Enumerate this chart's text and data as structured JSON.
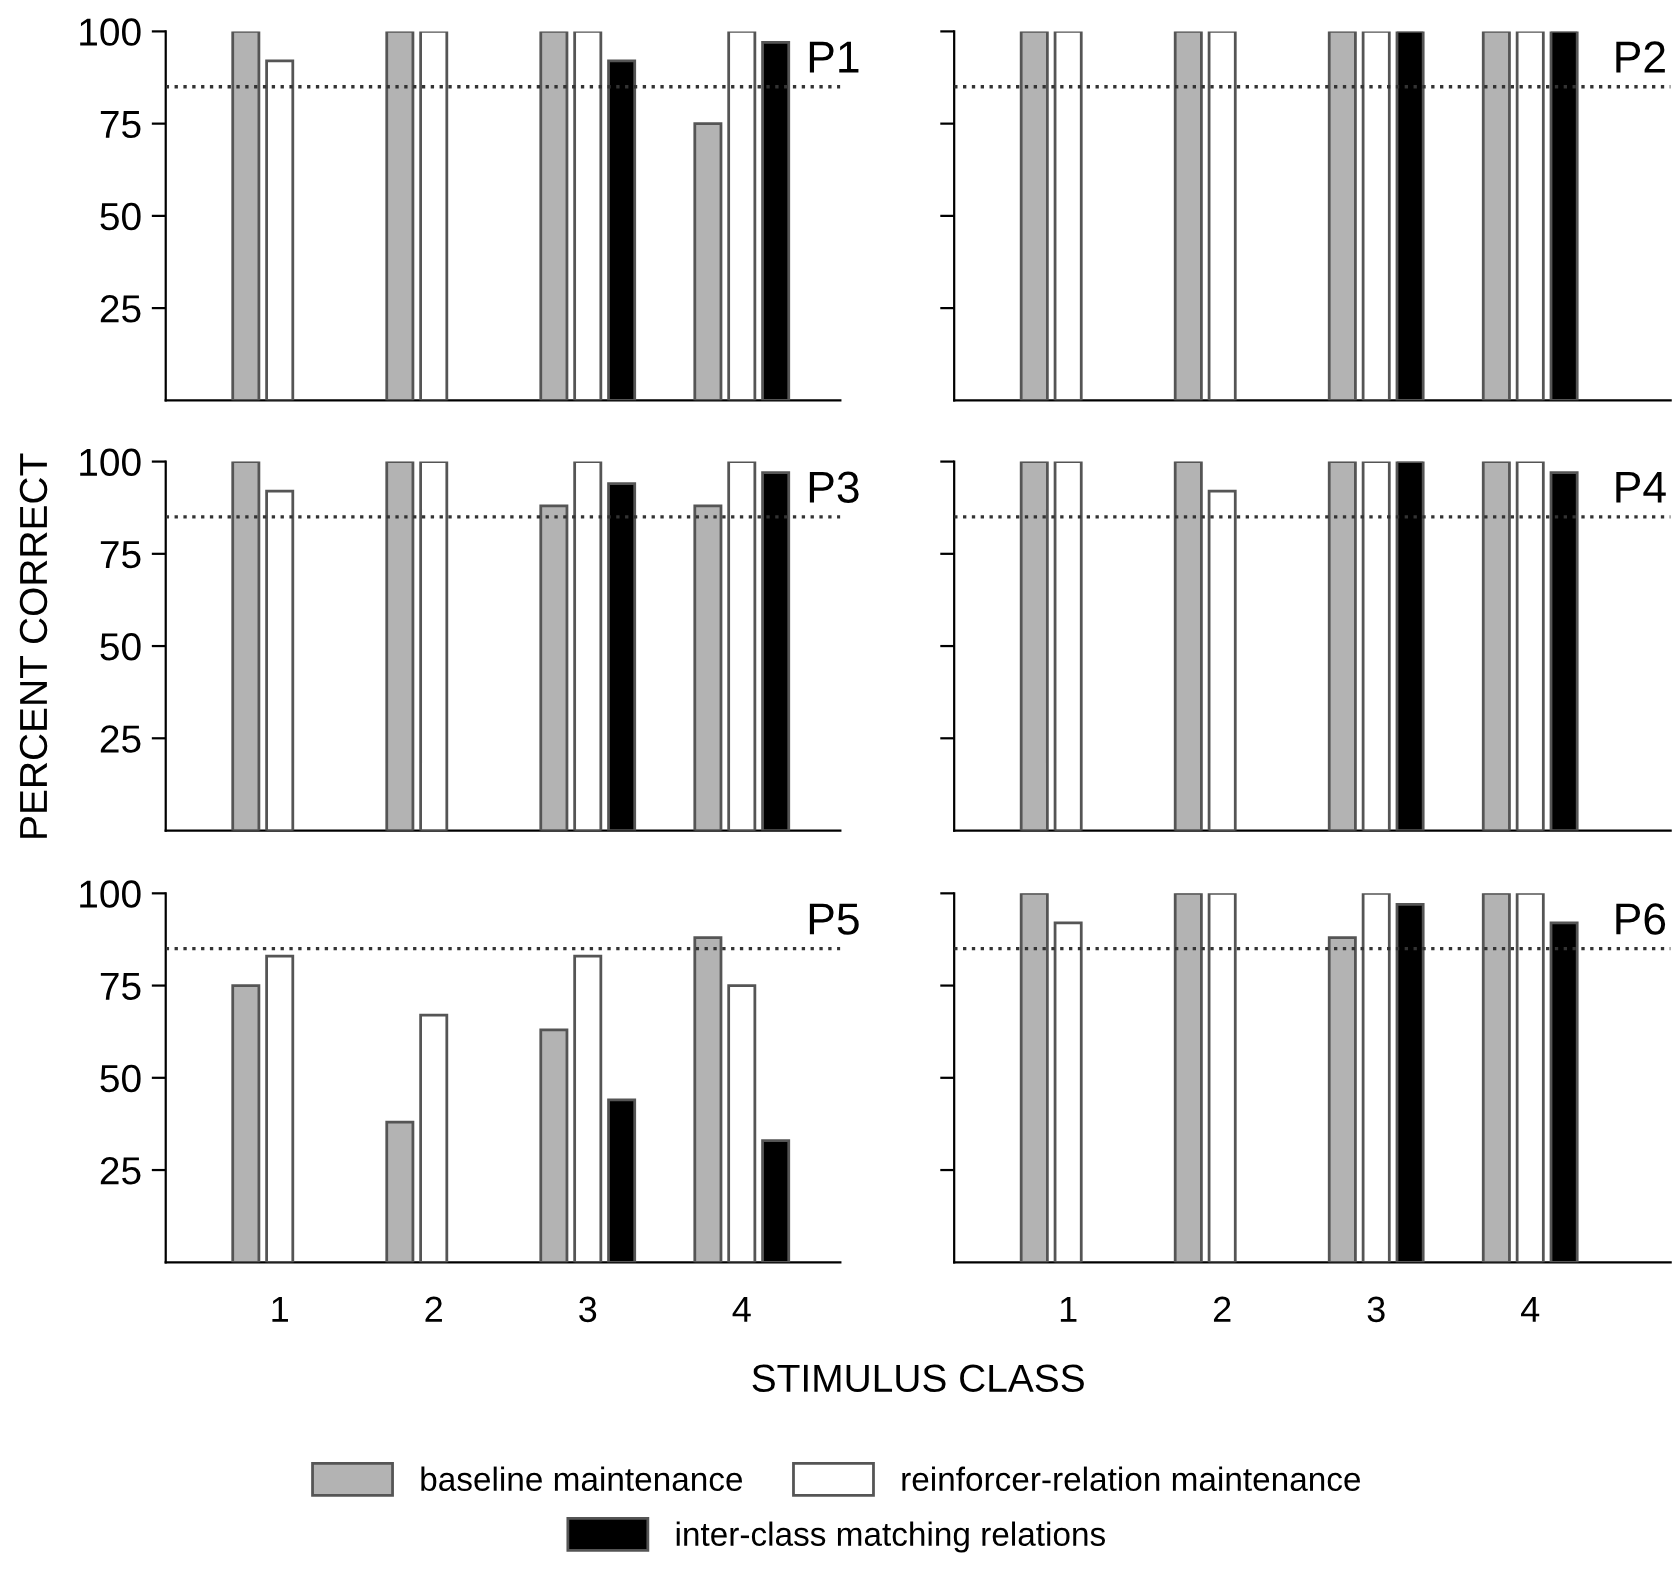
{
  "chart_data": [
    {
      "type": "bar",
      "title": "P1",
      "categories": [
        "1",
        "2",
        "3",
        "4"
      ],
      "ylim": [
        0,
        100
      ],
      "yticks": [
        25,
        50,
        75,
        100
      ],
      "tick_labels": "y",
      "grid": false,
      "legend": "bottom",
      "ref_lines": [
        {
          "axis": "y",
          "value": 85,
          "line_style": "dotted",
          "color": "#333333"
        }
      ],
      "series": [
        {
          "name": "baseline maintenance",
          "color": "#b3b3b3",
          "values": [
            100,
            100,
            100,
            75
          ]
        },
        {
          "name": "reinforcer-relation maintenance",
          "color": "#ffffff",
          "values": [
            92,
            100,
            100,
            100
          ]
        },
        {
          "name": "inter-class matching relations",
          "color": "#000000",
          "values": [
            null,
            null,
            92,
            97
          ]
        }
      ]
    },
    {
      "type": "bar",
      "title": "P2",
      "categories": [
        "1",
        "2",
        "3",
        "4"
      ],
      "ylim": [
        0,
        100
      ],
      "yticks": [
        25,
        50,
        75,
        100
      ],
      "tick_labels": false,
      "grid": false,
      "ref_lines": [
        {
          "axis": "y",
          "value": 85,
          "line_style": "dotted",
          "color": "#333333"
        }
      ],
      "series": [
        {
          "color": "#b3b3b3",
          "values": [
            100,
            100,
            100,
            100
          ]
        },
        {
          "color": "#ffffff",
          "values": [
            100,
            100,
            100,
            100
          ]
        },
        {
          "color": "#000000",
          "values": [
            null,
            null,
            100,
            100
          ]
        }
      ]
    },
    {
      "type": "bar",
      "title": "P3",
      "ylabel": "PERCENT CORRECT",
      "categories": [
        "1",
        "2",
        "3",
        "4"
      ],
      "ylim": [
        0,
        100
      ],
      "yticks": [
        25,
        50,
        75,
        100
      ],
      "tick_labels": "y",
      "grid": false,
      "ref_lines": [
        {
          "axis": "y",
          "value": 85,
          "line_style": "dotted",
          "color": "#333333"
        }
      ],
      "series": [
        {
          "color": "#b3b3b3",
          "values": [
            100,
            100,
            88,
            88
          ]
        },
        {
          "color": "#ffffff",
          "values": [
            92,
            100,
            100,
            100
          ]
        },
        {
          "color": "#000000",
          "values": [
            null,
            null,
            94,
            97
          ]
        }
      ]
    },
    {
      "type": "bar",
      "title": "P4",
      "categories": [
        "1",
        "2",
        "3",
        "4"
      ],
      "ylim": [
        0,
        100
      ],
      "yticks": [
        25,
        50,
        75,
        100
      ],
      "tick_labels": false,
      "grid": false,
      "ref_lines": [
        {
          "axis": "y",
          "value": 85,
          "line_style": "dotted",
          "color": "#333333"
        }
      ],
      "series": [
        {
          "color": "#b3b3b3",
          "values": [
            100,
            100,
            100,
            100
          ]
        },
        {
          "color": "#ffffff",
          "values": [
            100,
            92,
            100,
            100
          ]
        },
        {
          "color": "#000000",
          "values": [
            null,
            null,
            100,
            97
          ]
        }
      ]
    },
    {
      "type": "bar",
      "title": "P5",
      "xlabel": "STIMULUS CLASS",
      "categories": [
        "1",
        "2",
        "3",
        "4"
      ],
      "ylim": [
        0,
        100
      ],
      "yticks": [
        25,
        50,
        75,
        100
      ],
      "grid": false,
      "ref_lines": [
        {
          "axis": "y",
          "value": 85,
          "line_style": "dotted",
          "color": "#333333"
        }
      ],
      "series": [
        {
          "color": "#b3b3b3",
          "values": [
            75,
            38,
            63,
            88
          ]
        },
        {
          "color": "#ffffff",
          "values": [
            83,
            67,
            83,
            75
          ]
        },
        {
          "color": "#000000",
          "values": [
            null,
            null,
            44,
            33
          ]
        }
      ]
    },
    {
      "type": "bar",
      "title": "P6",
      "categories": [
        "1",
        "2",
        "3",
        "4"
      ],
      "ylim": [
        0,
        100
      ],
      "yticks": [
        25,
        50,
        75,
        100
      ],
      "tick_labels": "x",
      "grid": false,
      "ref_lines": [
        {
          "axis": "y",
          "value": 85,
          "line_style": "dotted",
          "color": "#333333"
        }
      ],
      "series": [
        {
          "color": "#b3b3b3",
          "values": [
            100,
            100,
            88,
            100
          ]
        },
        {
          "color": "#ffffff",
          "values": [
            92,
            100,
            100,
            100
          ]
        },
        {
          "color": "#000000",
          "values": [
            null,
            null,
            97,
            92
          ]
        }
      ]
    }
  ]
}
